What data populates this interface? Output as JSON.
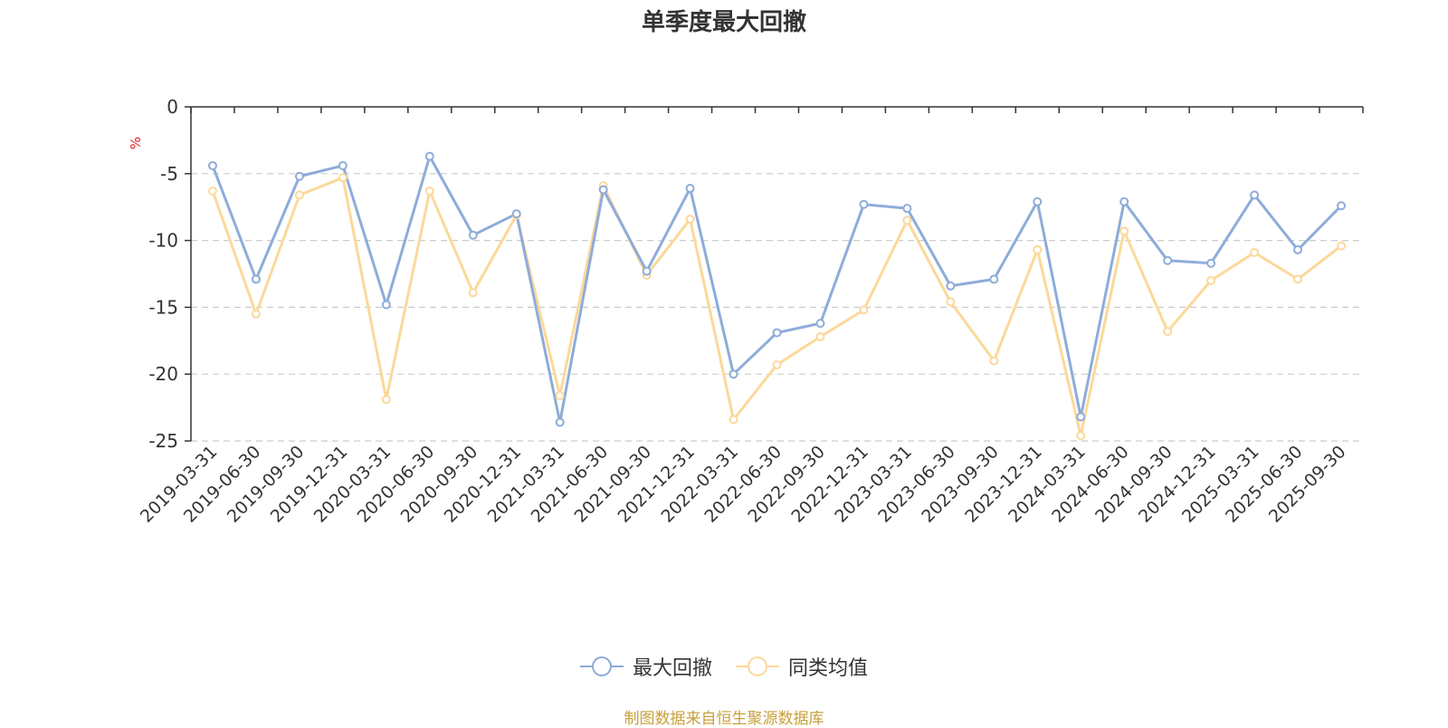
{
  "title": "单季度最大回撤",
  "source_note": "制图数据来自恒生聚源数据库",
  "colors": {
    "series1": "#8eacd9",
    "series2": "#fcd89a",
    "axis": "#333333",
    "grid": "#cccccc",
    "unit": "#e02020"
  },
  "legend": {
    "items": [
      "最大回撤",
      "同类均值"
    ],
    "placement": "bottom-center"
  },
  "chart_data": {
    "type": "line",
    "title": "单季度最大回撤",
    "ylabel": "%",
    "ylim": [
      -25,
      0
    ],
    "yticks": [
      0,
      -5,
      -10,
      -15,
      -20,
      -25
    ],
    "ytick_labels": [
      "0",
      "-5",
      "-10",
      "-15",
      "-20",
      "-25"
    ],
    "grid": true,
    "categories": [
      "2019-03-31",
      "2019-06-30",
      "2019-09-30",
      "2019-12-31",
      "2020-03-31",
      "2020-06-30",
      "2020-09-30",
      "2020-12-31",
      "2021-03-31",
      "2021-06-30",
      "2021-09-30",
      "2021-12-31",
      "2022-03-31",
      "2022-06-30",
      "2022-09-30",
      "2022-12-31",
      "2023-03-31",
      "2023-06-30",
      "2023-09-30",
      "2023-12-31",
      "2024-03-31",
      "2024-06-30",
      "2024-09-30",
      "2024-12-31",
      "2025-03-31",
      "2025-06-30",
      "2025-09-30"
    ],
    "series": [
      {
        "name": "最大回撤",
        "values": [
          -4.4,
          -12.9,
          -5.2,
          -4.4,
          -14.8,
          -3.7,
          -9.6,
          -8.0,
          -23.6,
          -6.2,
          -12.3,
          -6.1,
          -20.0,
          -16.9,
          -16.2,
          -7.3,
          -7.6,
          -13.4,
          -12.9,
          -7.1,
          -23.2,
          -7.1,
          -11.5,
          -11.7,
          -6.6,
          -10.7,
          -7.4
        ]
      },
      {
        "name": "同类均值",
        "values": [
          -6.3,
          -15.5,
          -6.6,
          -5.3,
          -21.9,
          -6.3,
          -13.9,
          -8.1,
          -21.6,
          -5.9,
          -12.6,
          -8.4,
          -23.4,
          -19.3,
          -17.2,
          -15.2,
          -8.5,
          -14.6,
          -19.0,
          -10.7,
          -24.6,
          -9.3,
          -16.8,
          -13.0,
          -10.9,
          -12.9,
          -10.4
        ]
      }
    ]
  }
}
